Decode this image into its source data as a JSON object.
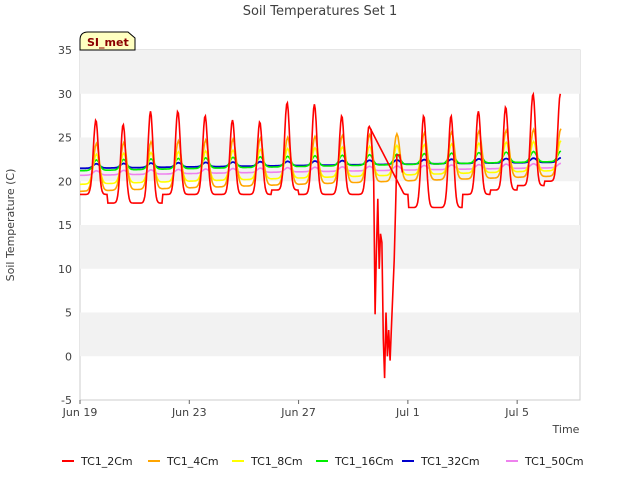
{
  "chart_data": {
    "type": "line",
    "title": "Soil Temperatures Set 1",
    "xlabel": "Time",
    "ylabel": "Soil Temperature (C)",
    "site_label": "SI_met",
    "x_unit": "date (2020, day of year fraction shown as dates)",
    "x_range": [
      "Jun 19",
      "Jul 7"
    ],
    "x_ticks": [
      "Jun 19",
      "Jun 23",
      "Jun 27",
      "Jul 1",
      "Jul 5"
    ],
    "ylim": [
      -5,
      35
    ],
    "y_ticks": [
      -5,
      0,
      5,
      10,
      15,
      20,
      25,
      30,
      35
    ],
    "grid": "horizontal bands",
    "legend_position": "bottom",
    "colors": {
      "TC1_2Cm": "#ff0000",
      "TC1_4Cm": "#ffa500",
      "TC1_8Cm": "#ffff00",
      "TC1_16Cm": "#00ee00",
      "TC1_32Cm": "#0000cc",
      "TC1_50Cm": "#ee82ee",
      "band": "#f2f2f2",
      "badge_bg": "#ffffc0"
    },
    "series": [
      {
        "name": "TC1_2Cm",
        "diurnal_peaks": [
          {
            "date": "Jun 19",
            "max": 27.0,
            "min": 18.5
          },
          {
            "date": "Jun 20",
            "max": 26.5,
            "min": 17.5
          },
          {
            "date": "Jun 21",
            "max": 28.0,
            "min": 17.5
          },
          {
            "date": "Jun 22",
            "max": 28.0,
            "min": 18.5
          },
          {
            "date": "Jun 23",
            "max": 27.5,
            "min": 18.5
          },
          {
            "date": "Jun 24",
            "max": 27.0,
            "min": 18.5
          },
          {
            "date": "Jun 25",
            "max": 26.8,
            "min": 18.5
          },
          {
            "date": "Jun 26",
            "max": 29.0,
            "min": 19.0
          },
          {
            "date": "Jun 27",
            "max": 28.8,
            "min": 18.5
          },
          {
            "date": "Jun 28",
            "max": 27.5,
            "min": 18.5
          },
          {
            "date": "Jun 29",
            "max": 26.3,
            "min": 18.5
          },
          {
            "date": "Jul 1",
            "max": 27.5,
            "min": 17.0
          },
          {
            "date": "Jul 2",
            "max": 27.5,
            "min": 17.0
          },
          {
            "date": "Jul 3",
            "max": 28.0,
            "min": 18.5
          },
          {
            "date": "Jul 4",
            "max": 28.5,
            "min": 19.0
          },
          {
            "date": "Jul 5",
            "max": 30.0,
            "min": 19.5
          },
          {
            "date": "Jul 6",
            "max": 30.0,
            "min": 20.0
          }
        ],
        "anomaly": [
          {
            "date": "Jun 29.8",
            "value": 4.8
          },
          {
            "date": "Jun 29.9",
            "value": 18.0
          },
          {
            "date": "Jun 30.1",
            "value": 13.0
          },
          {
            "date": "Jun 30.3",
            "value": -2.5
          },
          {
            "date": "Jun 30.5",
            "value": 3.5
          },
          {
            "date": "Jun 30.6",
            "value": 11.0
          },
          {
            "date": "Jun 30.8",
            "value": 23.0
          }
        ]
      },
      {
        "name": "TC1_4Cm",
        "diurnal_peaks": [
          {
            "max": 25.0,
            "min": 19.5
          },
          {
            "max": 26.0,
            "min": 20.0
          }
        ]
      },
      {
        "name": "TC1_8Cm",
        "diurnal_peaks": [
          {
            "max": 23.0,
            "min": 20.0
          },
          {
            "max": 25.0,
            "min": 21.0
          }
        ]
      },
      {
        "name": "TC1_16Cm",
        "start": 22.3,
        "end": 23.8
      },
      {
        "name": "TC1_32Cm",
        "start": 21.8,
        "end": 22.3
      },
      {
        "name": "TC1_50Cm",
        "start": 20.8,
        "end": 21.7
      }
    ]
  }
}
